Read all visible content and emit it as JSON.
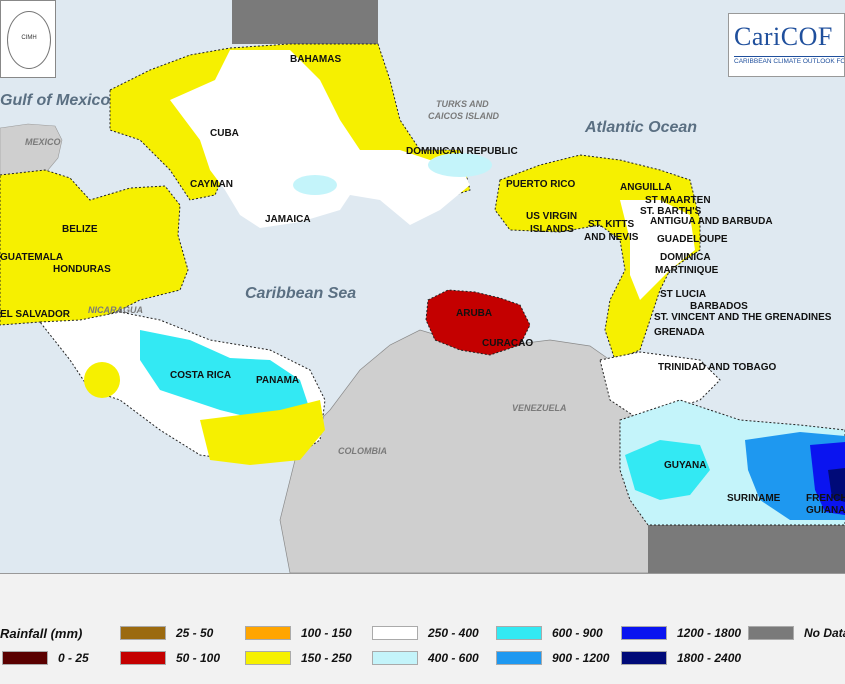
{
  "colors": {
    "ocean": "#dfe9f1",
    "land": "#cfcfcf",
    "nodata": "#7a7a7a",
    "r0_25": "#5a0000",
    "r25_50": "#9b6a10",
    "r50_100": "#c40000",
    "r100_150": "#ffa500",
    "r150_250": "#f6f000",
    "r250_400": "#ffffff",
    "r400_600": "#c4f4fa",
    "r600_900": "#33e9f3",
    "r900_1200": "#1e98f0",
    "r1200_1800": "#0a14f0",
    "r1800_2400": "#000a78"
  },
  "logos": {
    "left_text": "Caribbean Institute for Meteorology and Hydrology",
    "left_short": "CIMH",
    "right_title": "CariCOF",
    "right_subtitle": "CARIBBEAN CLIMATE OUTLOOK FORUM"
  },
  "water_labels": {
    "gulf": "Gulf of Mexico",
    "atlantic": "Atlantic Ocean",
    "caribbean": "Caribbean Sea"
  },
  "grey_labels": {
    "mexico": "MEXICO",
    "turks": "TURKS AND",
    "caicos": "CAICOS ISLAND",
    "nicaragua": "NICARAGUA",
    "venezuela": "VENEZUELA",
    "colombia": "COLOMBIA"
  },
  "country_labels": {
    "bahamas": "BAHAMAS",
    "cuba": "CUBA",
    "cayman": "CAYMAN",
    "jamaica": "JAMAICA",
    "dominican_republic": "DOMINICAN REPUBLIC",
    "puerto_rico": "PUERTO RICO",
    "us_virgin": "US VIRGIN",
    "islands": "ISLANDS",
    "anguilla": "ANGUILLA",
    "st_maarten": "ST MAARTEN",
    "st_barths": "ST. BARTH'S",
    "antigua": "ANTIGUA AND BARBUDA",
    "st_kitts": "ST. KITTS",
    "and_nevis": "AND NEVIS",
    "guadeloupe": "GUADELOUPE",
    "dominica": "DOMINICA",
    "martinique": "MARTINIQUE",
    "st_lucia": "ST LUCIA",
    "barbados": "BARBADOS",
    "st_vincent": "ST. VINCENT AND THE GRENADINES",
    "grenada": "GRENADA",
    "trinidad": "TRINIDAD AND TOBAGO",
    "belize": "BELIZE",
    "guatemala": "GUATEMALA",
    "honduras": "HONDURAS",
    "el_salvador": "EL SALVADOR",
    "costa_rica": "COSTA RICA",
    "panama": "PANAMA",
    "aruba": "ARUBA",
    "curacao": "CURACAO",
    "guyana": "GUYANA",
    "suriname": "SURINAME",
    "french": "FRENCH",
    "guiana": "GUIANA"
  },
  "legend": {
    "title": "Rainfall (mm)",
    "items": [
      {
        "label": "0 - 25",
        "color": "#5a0000"
      },
      {
        "label": "25 - 50",
        "color": "#9b6a10"
      },
      {
        "label": "50 - 100",
        "color": "#c40000"
      },
      {
        "label": "100 - 150",
        "color": "#ffa500"
      },
      {
        "label": "150 - 250",
        "color": "#f6f000"
      },
      {
        "label": "250 - 400",
        "color": "#ffffff"
      },
      {
        "label": "400 - 600",
        "color": "#c4f4fa"
      },
      {
        "label": "600 - 900",
        "color": "#33e9f3"
      },
      {
        "label": "900 - 1200",
        "color": "#1e98f0"
      },
      {
        "label": "1200 - 1800",
        "color": "#0a14f0"
      },
      {
        "label": "1800 - 2400",
        "color": "#000a78"
      },
      {
        "label": "No Data",
        "color": "#7a7a7a"
      }
    ]
  }
}
